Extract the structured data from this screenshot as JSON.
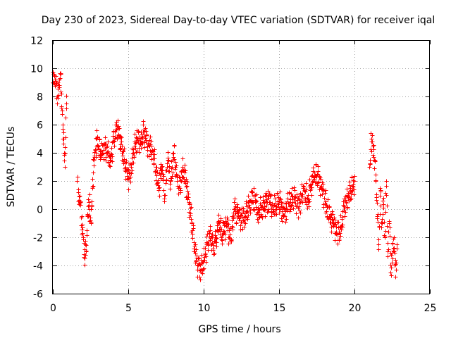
{
  "chart_data": {
    "type": "scatter",
    "title": "Day 230 of 2023, Sidereal Day-to-day VTEC variation (SDTVAR) for receiver iqal",
    "xlabel": "GPS time / hours",
    "ylabel": "SDTVAR / TECUs",
    "xlim": [
      0,
      25
    ],
    "ylim": [
      -6,
      12
    ],
    "xticks": [
      0,
      5,
      10,
      15,
      20,
      25
    ],
    "yticks": [
      -6,
      -4,
      -2,
      0,
      2,
      4,
      6,
      8,
      10,
      12
    ],
    "xtick_labels": [
      "0",
      "5",
      "10",
      "15",
      "20",
      "25"
    ],
    "ytick_labels": [
      "-6",
      "-4",
      "-2",
      "0",
      "2",
      "4",
      "6",
      "8",
      "10",
      "12"
    ],
    "grid": true,
    "marker": "+",
    "color": "#ff0000",
    "series": [
      {
        "name": "SDTVAR",
        "x": [
          0.0,
          0.15,
          0.3,
          0.4,
          0.5,
          0.55,
          0.6,
          0.65,
          0.7,
          0.75,
          0.8,
          0.85,
          0.9,
          1.6,
          1.7,
          1.8,
          1.9,
          2.0,
          2.1,
          2.15,
          2.2,
          2.25,
          2.3,
          2.4,
          2.5,
          2.6,
          2.7,
          2.8,
          2.9,
          3.0,
          3.2,
          3.4,
          3.6,
          3.8,
          4.0,
          4.1,
          4.2,
          4.4,
          4.6,
          4.8,
          5.0,
          5.2,
          5.4,
          5.6,
          5.8,
          6.0,
          6.3,
          6.6,
          7.0,
          7.2,
          7.4,
          7.6,
          7.8,
          8.0,
          8.2,
          8.4,
          8.6,
          8.8,
          9.0,
          9.2,
          9.4,
          9.6,
          9.8,
          10.0,
          10.2,
          10.4,
          10.6,
          10.8,
          11.0,
          11.2,
          11.5,
          11.8,
          12.0,
          12.3,
          12.6,
          13.0,
          13.3,
          13.6,
          14.0,
          14.3,
          14.6,
          15.0,
          15.3,
          15.6,
          16.0,
          16.3,
          16.6,
          16.9,
          17.1,
          17.3,
          17.5,
          17.8,
          18.0,
          18.3,
          18.6,
          18.9,
          19.1,
          19.3,
          20.0,
          21.0,
          21.1,
          21.2,
          21.3,
          21.4,
          21.5,
          21.6,
          21.7,
          21.8,
          21.9,
          22.0,
          22.1,
          22.2,
          22.3,
          22.4,
          22.5,
          22.6,
          22.7,
          22.8
        ],
        "y": [
          9.0,
          9.2,
          8.0,
          8.8,
          9.6,
          8.2,
          7.0,
          6.0,
          5.0,
          4.0,
          3.0,
          6.5,
          7.5,
          2.0,
          1.2,
          0.5,
          -0.5,
          -2.0,
          -3.5,
          -2.5,
          -3.0,
          -1.5,
          -0.5,
          0.5,
          -1.0,
          1.5,
          3.5,
          4.2,
          5.0,
          4.5,
          3.8,
          4.6,
          4.0,
          3.5,
          4.8,
          5.5,
          6.0,
          5.2,
          4.0,
          3.0,
          2.2,
          3.0,
          4.5,
          5.0,
          4.8,
          5.5,
          4.6,
          4.2,
          1.5,
          3.0,
          1.0,
          3.5,
          2.0,
          4.0,
          2.5,
          1.5,
          3.0,
          2.0,
          0.5,
          -1.0,
          -3.0,
          -4.0,
          -4.3,
          -3.6,
          -2.5,
          -1.5,
          -2.8,
          -2.0,
          -1.0,
          -1.8,
          -1.0,
          -2.2,
          0.0,
          -0.5,
          -0.8,
          0.3,
          1.0,
          -0.2,
          0.2,
          0.8,
          0.0,
          0.6,
          -0.5,
          0.4,
          0.8,
          0.2,
          1.5,
          0.5,
          1.8,
          2.3,
          2.5,
          1.5,
          0.8,
          -0.5,
          -1.0,
          -1.8,
          -1.2,
          0.2,
          2.0,
          3.0,
          5.0,
          4.5,
          3.5,
          2.0,
          -0.5,
          -2.5,
          1.5,
          -1.0,
          0.8,
          -2.0,
          2.0,
          -3.0,
          -1.0,
          -4.5,
          -3.5,
          -2.0,
          -4.8,
          -2.5
        ]
      }
    ]
  }
}
